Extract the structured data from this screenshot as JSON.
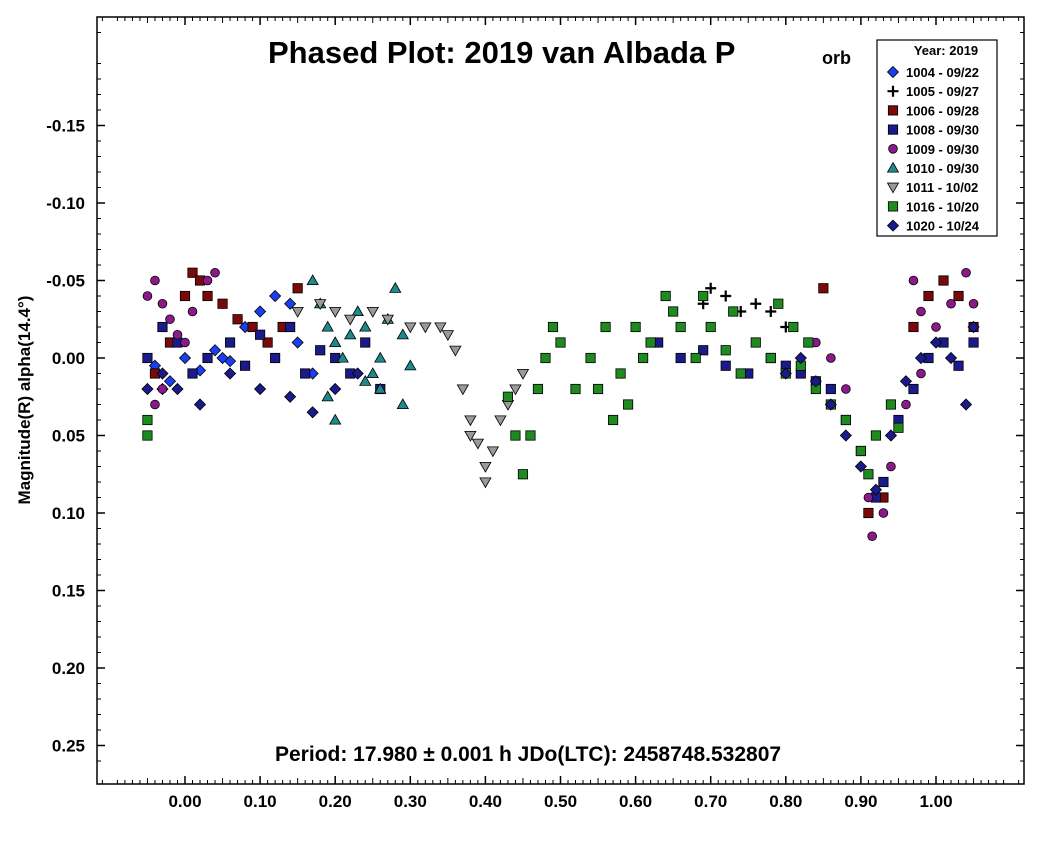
{
  "chart_data": {
    "type": "scatter",
    "title_main": "Phased Plot: 2019 van Albada P",
    "title_sub": "orb",
    "footer": "Period: 17.980 ± 0.001 h  JDo(LTC): 2458748.532807",
    "ylabel": "Magnitude(R) alpha(14.4°)",
    "xlim": [
      -0.12,
      1.12
    ],
    "ylim": [
      -0.22,
      0.28
    ],
    "y_inverted": true,
    "xticks": [
      0.0,
      0.1,
      0.2,
      0.3,
      0.4,
      0.5,
      0.6,
      0.7,
      0.8,
      0.9,
      1.0
    ],
    "xtick_labels": [
      "0.00",
      "0.10",
      "0.20",
      "0.30",
      "0.40",
      "0.50",
      "0.60",
      "0.70",
      "0.80",
      "0.90",
      "1.00"
    ],
    "yticks": [
      -0.15,
      -0.1,
      -0.05,
      0.0,
      0.05,
      0.1,
      0.15,
      0.2,
      0.25
    ],
    "ytick_labels": [
      "-0.15",
      "-0.10",
      "-0.05",
      "0.00",
      "0.05",
      "0.10",
      "0.15",
      "0.20",
      "0.25"
    ],
    "grid": false,
    "legend": {
      "title": "Year: 2019",
      "position": "top-right",
      "entries": [
        {
          "label": "1004 - 09/22",
          "marker": "diamond",
          "color": "#1a3ff0"
        },
        {
          "label": "1005 - 09/27",
          "marker": "plus",
          "color": "#000000"
        },
        {
          "label": "1006 - 09/28",
          "marker": "square",
          "color": "#7a0a0a"
        },
        {
          "label": "1008 - 09/30",
          "marker": "square",
          "color": "#1a1a8a"
        },
        {
          "label": "1009 - 09/30",
          "marker": "circle",
          "color": "#8a1a8a"
        },
        {
          "label": "1010 - 09/30",
          "marker": "triangle-up",
          "color": "#1f8a8a"
        },
        {
          "label": "1011 - 10/02",
          "marker": "triangle-down",
          "color": "#9a9a9a"
        },
        {
          "label": "1016 - 10/20",
          "marker": "square",
          "color": "#1f8a1f"
        },
        {
          "label": "1020 - 10/24",
          "marker": "diamond",
          "color": "#1a1a8a"
        }
      ]
    },
    "series": [
      {
        "name": "1004 - 09/22",
        "points": [
          [
            -0.04,
            0.005
          ],
          [
            -0.02,
            0.015
          ],
          [
            0.0,
            0.0
          ],
          [
            0.02,
            0.008
          ],
          [
            0.04,
            -0.005
          ],
          [
            0.06,
            0.002
          ],
          [
            0.08,
            -0.02
          ],
          [
            0.1,
            -0.03
          ],
          [
            0.12,
            -0.04
          ],
          [
            0.14,
            -0.035
          ],
          [
            0.15,
            -0.01
          ],
          [
            0.17,
            0.01
          ],
          [
            -0.03,
            0.02
          ],
          [
            0.05,
            0.0
          ]
        ]
      },
      {
        "name": "1005 - 09/27",
        "points": [
          [
            0.69,
            -0.035
          ],
          [
            0.7,
            -0.045
          ],
          [
            0.72,
            -0.04
          ],
          [
            0.74,
            -0.03
          ],
          [
            0.76,
            -0.035
          ],
          [
            0.78,
            -0.03
          ],
          [
            0.8,
            -0.02
          ]
        ]
      },
      {
        "name": "1006 - 09/28",
        "points": [
          [
            -0.04,
            0.01
          ],
          [
            -0.02,
            -0.01
          ],
          [
            0.0,
            -0.04
          ],
          [
            0.01,
            -0.055
          ],
          [
            0.02,
            -0.05
          ],
          [
            0.03,
            -0.04
          ],
          [
            0.05,
            -0.035
          ],
          [
            0.07,
            -0.025
          ],
          [
            0.09,
            -0.02
          ],
          [
            0.11,
            -0.01
          ],
          [
            0.13,
            -0.02
          ],
          [
            0.15,
            -0.045
          ],
          [
            0.97,
            -0.02
          ],
          [
            0.99,
            -0.04
          ],
          [
            1.01,
            -0.05
          ],
          [
            1.03,
            -0.04
          ],
          [
            1.05,
            -0.02
          ],
          [
            0.85,
            -0.045
          ],
          [
            0.91,
            0.1
          ],
          [
            0.93,
            0.09
          ]
        ]
      },
      {
        "name": "1008 - 09/30",
        "points": [
          [
            -0.05,
            0.0
          ],
          [
            -0.03,
            -0.02
          ],
          [
            -0.01,
            -0.01
          ],
          [
            0.01,
            0.01
          ],
          [
            0.03,
            0.0
          ],
          [
            0.06,
            -0.01
          ],
          [
            0.08,
            0.005
          ],
          [
            0.1,
            -0.015
          ],
          [
            0.12,
            0.0
          ],
          [
            0.14,
            -0.02
          ],
          [
            0.16,
            0.01
          ],
          [
            0.18,
            -0.005
          ],
          [
            0.2,
            0.0
          ],
          [
            0.22,
            0.01
          ],
          [
            0.24,
            -0.01
          ],
          [
            0.26,
            0.02
          ],
          [
            0.63,
            -0.01
          ],
          [
            0.66,
            0.0
          ],
          [
            0.69,
            -0.005
          ],
          [
            0.72,
            0.005
          ],
          [
            0.75,
            0.01
          ],
          [
            0.78,
            0.0
          ],
          [
            0.8,
            0.005
          ],
          [
            0.82,
            0.01
          ],
          [
            0.84,
            0.015
          ],
          [
            0.86,
            0.02
          ],
          [
            0.88,
            0.04
          ],
          [
            0.9,
            0.06
          ],
          [
            0.92,
            0.09
          ],
          [
            0.93,
            0.08
          ],
          [
            0.95,
            0.04
          ],
          [
            0.97,
            0.02
          ],
          [
            0.99,
            0.0
          ],
          [
            1.01,
            -0.01
          ],
          [
            1.03,
            0.005
          ],
          [
            1.05,
            -0.01
          ]
        ]
      },
      {
        "name": "1009 - 09/30",
        "points": [
          [
            -0.05,
            -0.04
          ],
          [
            -0.04,
            -0.05
          ],
          [
            -0.03,
            -0.035
          ],
          [
            -0.02,
            -0.025
          ],
          [
            -0.01,
            -0.015
          ],
          [
            0.0,
            -0.01
          ],
          [
            0.01,
            -0.03
          ],
          [
            0.03,
            -0.05
          ],
          [
            0.04,
            -0.055
          ],
          [
            -0.05,
            0.05
          ],
          [
            -0.04,
            0.03
          ],
          [
            -0.03,
            0.02
          ],
          [
            0.97,
            -0.05
          ],
          [
            0.98,
            -0.03
          ],
          [
            1.0,
            -0.02
          ],
          [
            1.02,
            -0.035
          ],
          [
            1.04,
            -0.055
          ],
          [
            1.05,
            -0.035
          ],
          [
            0.84,
            -0.01
          ],
          [
            0.86,
            0.0
          ],
          [
            0.88,
            0.02
          ],
          [
            0.9,
            0.06
          ],
          [
            0.91,
            0.09
          ],
          [
            0.915,
            0.115
          ],
          [
            0.93,
            0.1
          ],
          [
            0.94,
            0.07
          ],
          [
            0.96,
            0.03
          ],
          [
            0.98,
            0.01
          ]
        ]
      },
      {
        "name": "1010 - 09/30",
        "points": [
          [
            0.17,
            -0.05
          ],
          [
            0.18,
            -0.035
          ],
          [
            0.19,
            -0.02
          ],
          [
            0.2,
            -0.01
          ],
          [
            0.21,
            0.0
          ],
          [
            0.22,
            -0.015
          ],
          [
            0.23,
            -0.03
          ],
          [
            0.24,
            -0.02
          ],
          [
            0.25,
            0.01
          ],
          [
            0.26,
            0.0
          ],
          [
            0.27,
            -0.025
          ],
          [
            0.28,
            -0.045
          ],
          [
            0.29,
            -0.015
          ],
          [
            0.3,
            0.005
          ],
          [
            0.19,
            0.025
          ],
          [
            0.2,
            0.04
          ],
          [
            0.24,
            0.015
          ],
          [
            0.26,
            0.02
          ],
          [
            0.29,
            0.03
          ]
        ]
      },
      {
        "name": "1011 - 10/02",
        "points": [
          [
            0.15,
            -0.03
          ],
          [
            0.18,
            -0.035
          ],
          [
            0.2,
            -0.03
          ],
          [
            0.22,
            -0.025
          ],
          [
            0.25,
            -0.03
          ],
          [
            0.27,
            -0.025
          ],
          [
            0.3,
            -0.02
          ],
          [
            0.32,
            -0.02
          ],
          [
            0.34,
            -0.02
          ],
          [
            0.35,
            -0.015
          ],
          [
            0.36,
            -0.005
          ],
          [
            0.37,
            0.02
          ],
          [
            0.38,
            0.04
          ],
          [
            0.39,
            0.055
          ],
          [
            0.4,
            0.07
          ],
          [
            0.41,
            0.06
          ],
          [
            0.42,
            0.04
          ],
          [
            0.43,
            0.03
          ],
          [
            0.44,
            0.02
          ],
          [
            0.45,
            0.01
          ],
          [
            0.4,
            0.08
          ],
          [
            0.38,
            0.05
          ]
        ]
      },
      {
        "name": "1016 - 10/20",
        "points": [
          [
            -0.05,
            0.04
          ],
          [
            -0.05,
            0.05
          ],
          [
            0.43,
            0.025
          ],
          [
            0.44,
            0.05
          ],
          [
            0.45,
            0.075
          ],
          [
            0.46,
            0.05
          ],
          [
            0.47,
            0.02
          ],
          [
            0.48,
            0.0
          ],
          [
            0.49,
            -0.02
          ],
          [
            0.5,
            -0.01
          ],
          [
            0.52,
            0.02
          ],
          [
            0.54,
            0.0
          ],
          [
            0.56,
            -0.02
          ],
          [
            0.58,
            0.01
          ],
          [
            0.6,
            -0.02
          ],
          [
            0.62,
            -0.01
          ],
          [
            0.64,
            -0.04
          ],
          [
            0.66,
            -0.02
          ],
          [
            0.68,
            0.0
          ],
          [
            0.7,
            -0.02
          ],
          [
            0.72,
            -0.005
          ],
          [
            0.74,
            0.01
          ],
          [
            0.76,
            -0.01
          ],
          [
            0.78,
            0.0
          ],
          [
            0.8,
            0.01
          ],
          [
            0.82,
            0.005
          ],
          [
            0.84,
            0.02
          ],
          [
            0.86,
            0.03
          ],
          [
            0.88,
            0.04
          ],
          [
            0.9,
            0.06
          ],
          [
            0.91,
            0.075
          ],
          [
            0.92,
            0.05
          ],
          [
            0.94,
            0.03
          ],
          [
            0.95,
            0.045
          ],
          [
            0.55,
            0.02
          ],
          [
            0.57,
            0.04
          ],
          [
            0.59,
            0.03
          ],
          [
            0.61,
            0.0
          ],
          [
            0.65,
            -0.03
          ],
          [
            0.69,
            -0.04
          ],
          [
            0.73,
            -0.03
          ],
          [
            0.79,
            -0.035
          ],
          [
            0.81,
            -0.02
          ],
          [
            0.83,
            -0.01
          ]
        ]
      },
      {
        "name": "1020 - 10/24",
        "points": [
          [
            -0.05,
            0.02
          ],
          [
            -0.03,
            0.01
          ],
          [
            -0.01,
            0.02
          ],
          [
            0.02,
            0.03
          ],
          [
            0.06,
            0.01
          ],
          [
            0.1,
            0.02
          ],
          [
            0.14,
            0.025
          ],
          [
            0.17,
            0.035
          ],
          [
            0.2,
            0.02
          ],
          [
            0.23,
            0.01
          ],
          [
            0.8,
            0.01
          ],
          [
            0.82,
            0.0
          ],
          [
            0.84,
            0.015
          ],
          [
            0.86,
            0.03
          ],
          [
            0.88,
            0.05
          ],
          [
            0.9,
            0.07
          ],
          [
            0.92,
            0.085
          ],
          [
            0.94,
            0.05
          ],
          [
            0.96,
            0.015
          ],
          [
            0.98,
            0.0
          ],
          [
            1.0,
            -0.01
          ],
          [
            1.02,
            0.0
          ],
          [
            1.04,
            0.03
          ],
          [
            1.05,
            -0.02
          ]
        ]
      }
    ]
  }
}
